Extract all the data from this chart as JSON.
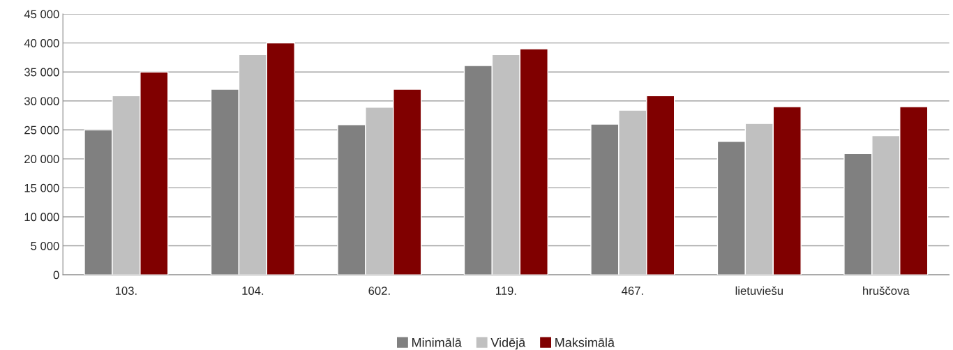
{
  "chart_data": {
    "type": "bar",
    "categories": [
      "103.",
      "104.",
      "602.",
      "119.",
      "467.",
      "lietuviešu",
      "hruščova"
    ],
    "series": [
      {
        "name": "Minimālā",
        "color": "#808080",
        "values": [
          25000,
          32000,
          25900,
          36100,
          26000,
          23000,
          20900
        ]
      },
      {
        "name": "Vidējā",
        "color": "#c0c0c0",
        "values": [
          30900,
          38000,
          28900,
          38000,
          28400,
          26100,
          24000
        ]
      },
      {
        "name": "Maksimālā",
        "color": "#800000",
        "values": [
          35000,
          40000,
          32000,
          39000,
          30900,
          29000,
          29000
        ]
      }
    ],
    "ylim": [
      0,
      45000
    ],
    "yticks": [
      {
        "value": 0,
        "label": "0"
      },
      {
        "value": 5000,
        "label": "5 000"
      },
      {
        "value": 10000,
        "label": "10 000"
      },
      {
        "value": 15000,
        "label": "15 000"
      },
      {
        "value": 20000,
        "label": "20 000"
      },
      {
        "value": 25000,
        "label": "25 000"
      },
      {
        "value": 30000,
        "label": "30 000"
      },
      {
        "value": 35000,
        "label": "35 000"
      },
      {
        "value": 40000,
        "label": "40 000"
      },
      {
        "value": 45000,
        "label": "45 000"
      }
    ],
    "grid": "y",
    "legend": "bottom"
  }
}
